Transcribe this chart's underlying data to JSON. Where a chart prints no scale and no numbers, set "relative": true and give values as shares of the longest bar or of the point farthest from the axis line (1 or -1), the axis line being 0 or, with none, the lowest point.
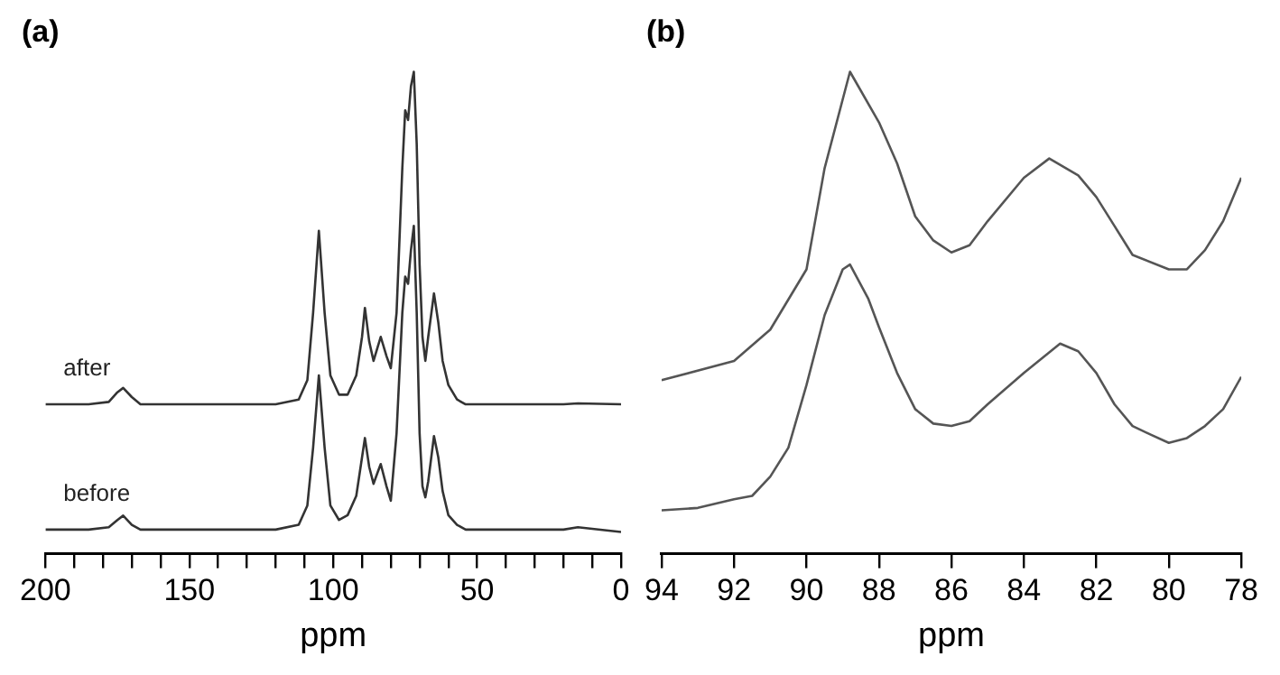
{
  "chart_data": [
    {
      "type": "line",
      "title": "(a)",
      "xlabel": "ppm",
      "relative": true,
      "grid": false,
      "legend": false,
      "xlim": [
        200,
        0
      ],
      "xticks": [
        200,
        {
          "value": 190,
          "label": null
        },
        {
          "value": 180,
          "label": null
        },
        {
          "value": 170,
          "label": null
        },
        {
          "value": 160,
          "label": null
        },
        150,
        {
          "value": 140,
          "label": null
        },
        {
          "value": 130,
          "label": null
        },
        {
          "value": 120,
          "label": null
        },
        {
          "value": 110,
          "label": null
        },
        100,
        {
          "value": 90,
          "label": null
        },
        {
          "value": 80,
          "label": null
        },
        {
          "value": 70,
          "label": null
        },
        {
          "value": 60,
          "label": null
        },
        50,
        {
          "value": 40,
          "label": null
        },
        {
          "value": 30,
          "label": null
        },
        {
          "value": 20,
          "label": null
        },
        {
          "value": 10,
          "label": null
        },
        0
      ],
      "series": [
        {
          "name": "after",
          "color": "#333333",
          "x": [
            200,
            185,
            178,
            175,
            173,
            170,
            167,
            150,
            120,
            112,
            109,
            107,
            105,
            103,
            101,
            98,
            95,
            92,
            90,
            89,
            87.5,
            86,
            84.5,
            83.5,
            81.5,
            80,
            78,
            76,
            75,
            74,
            73,
            72,
            71,
            70,
            69,
            68,
            67,
            65,
            63.5,
            62,
            60,
            57,
            54,
            40,
            20,
            15,
            0
          ],
          "values": [
            0.31,
            0.31,
            0.315,
            0.335,
            0.344,
            0.325,
            0.31,
            0.31,
            0.31,
            0.32,
            0.36,
            0.5,
            0.67,
            0.5,
            0.37,
            0.33,
            0.33,
            0.37,
            0.45,
            0.51,
            0.44,
            0.4,
            0.43,
            0.45,
            0.41,
            0.385,
            0.5,
            0.8,
            0.92,
            0.9,
            0.97,
            1.0,
            0.85,
            0.6,
            0.45,
            0.4,
            0.45,
            0.54,
            0.48,
            0.4,
            0.35,
            0.32,
            0.31,
            0.31,
            0.31,
            0.312,
            0.31
          ]
        },
        {
          "name": "before",
          "color": "#333333",
          "x": [
            200,
            185,
            178,
            175,
            173,
            170,
            167,
            150,
            120,
            112,
            109,
            107,
            105,
            103,
            101,
            98,
            95,
            92,
            90,
            89,
            87.5,
            86,
            84.5,
            83.5,
            81.5,
            80,
            78,
            76,
            75,
            74,
            73,
            72,
            71,
            70,
            69,
            68,
            67,
            65,
            63.5,
            62,
            60,
            57,
            54,
            40,
            20,
            15,
            0
          ],
          "values": [
            0.05,
            0.05,
            0.055,
            0.07,
            0.079,
            0.06,
            0.05,
            0.05,
            0.05,
            0.06,
            0.1,
            0.22,
            0.37,
            0.22,
            0.1,
            0.07,
            0.08,
            0.12,
            0.2,
            0.24,
            0.18,
            0.145,
            0.17,
            0.186,
            0.14,
            0.11,
            0.25,
            0.5,
            0.575,
            0.56,
            0.63,
            0.68,
            0.5,
            0.25,
            0.14,
            0.117,
            0.15,
            0.244,
            0.2,
            0.13,
            0.08,
            0.06,
            0.05,
            0.05,
            0.05,
            0.055,
            0.045
          ]
        }
      ]
    },
    {
      "type": "line",
      "title": "(b)",
      "xlabel": "ppm",
      "relative": true,
      "grid": false,
      "legend": false,
      "xlim": [
        94,
        78
      ],
      "xticks": [
        94,
        92,
        90,
        88,
        86,
        84,
        82,
        80,
        78
      ],
      "series": [
        {
          "color": "#555555",
          "x": [
            94,
            92,
            91,
            90,
            89.5,
            88.8,
            88,
            87.5,
            87,
            86.5,
            86,
            85.5,
            85,
            84,
            83.3,
            82.5,
            82,
            81.5,
            81,
            80,
            79.5,
            79,
            78.5,
            78
          ],
          "values": [
            0.36,
            0.4,
            0.465,
            0.59,
            0.8,
            1.0,
            0.895,
            0.81,
            0.7,
            0.65,
            0.625,
            0.64,
            0.69,
            0.78,
            0.82,
            0.785,
            0.74,
            0.68,
            0.62,
            0.59,
            0.59,
            0.63,
            0.69,
            0.78
          ]
        },
        {
          "color": "#555555",
          "x": [
            94,
            93,
            92,
            91.5,
            91,
            90.5,
            90,
            89.5,
            89,
            88.8,
            88.3,
            88,
            87.5,
            87,
            86.5,
            86,
            85.5,
            85,
            84,
            83,
            82.5,
            82,
            81.5,
            81,
            80.5,
            80,
            79.5,
            79,
            78.5,
            78
          ],
          "values": [
            0.09,
            0.095,
            0.113,
            0.12,
            0.16,
            0.22,
            0.35,
            0.495,
            0.59,
            0.6,
            0.53,
            0.47,
            0.375,
            0.3,
            0.27,
            0.265,
            0.275,
            0.31,
            0.375,
            0.436,
            0.42,
            0.375,
            0.31,
            0.265,
            0.247,
            0.23,
            0.24,
            0.265,
            0.3,
            0.367
          ]
        }
      ]
    }
  ]
}
